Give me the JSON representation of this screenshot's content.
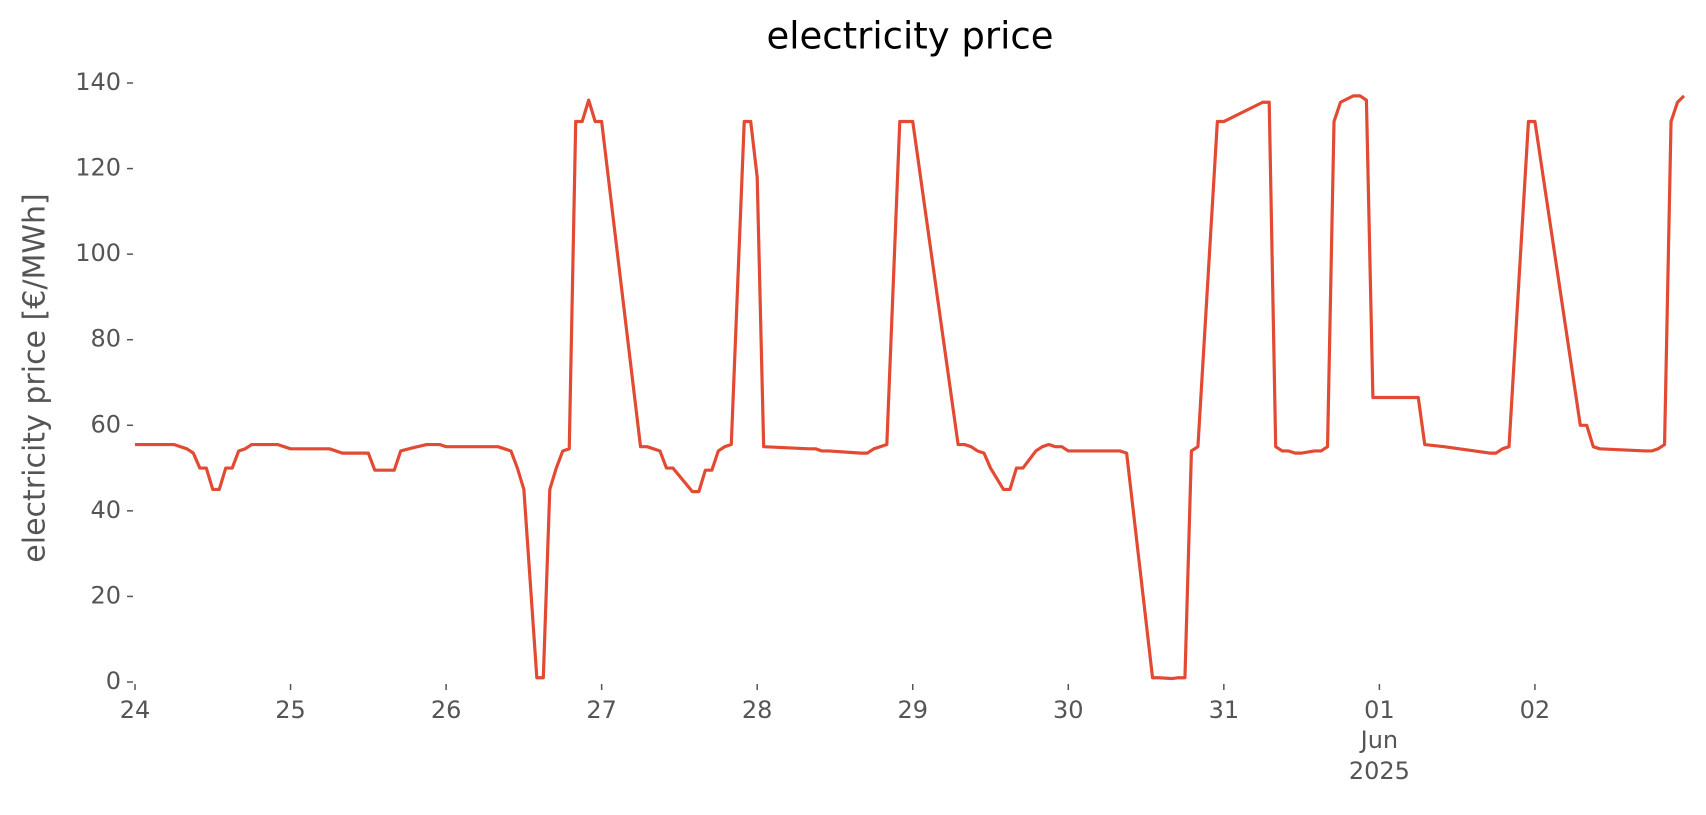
{
  "chart_data": {
    "type": "line",
    "title": "electricity price",
    "y_label": "electricity price [€/MWh]",
    "series": [
      {
        "name": "electricity price",
        "color": "#e24a33",
        "x": [
          "2025-05-24T00:00",
          "2025-05-24T06:00",
          "2025-05-24T08:00",
          "2025-05-24T09:00",
          "2025-05-24T10:00",
          "2025-05-24T11:00",
          "2025-05-24T12:00",
          "2025-05-24T13:00",
          "2025-05-24T14:00",
          "2025-05-24T15:00",
          "2025-05-24T16:00",
          "2025-05-24T17:00",
          "2025-05-24T18:00",
          "2025-05-24T22:00",
          "2025-05-25T00:00",
          "2025-05-25T06:00",
          "2025-05-25T08:00",
          "2025-05-25T12:00",
          "2025-05-25T13:00",
          "2025-05-25T16:00",
          "2025-05-25T17:00",
          "2025-05-25T19:00",
          "2025-05-25T21:00",
          "2025-05-25T23:00",
          "2025-05-26T00:00",
          "2025-05-26T08:00",
          "2025-05-26T09:00",
          "2025-05-26T10:00",
          "2025-05-26T11:00",
          "2025-05-26T12:00",
          "2025-05-26T14:00",
          "2025-05-26T15:00",
          "2025-05-26T16:00",
          "2025-05-26T17:00",
          "2025-05-26T18:00",
          "2025-05-26T19:00",
          "2025-05-26T20:00",
          "2025-05-26T21:00",
          "2025-05-26T22:00",
          "2025-05-26T23:00",
          "2025-05-27T00:00",
          "2025-05-27T06:00",
          "2025-05-27T07:00",
          "2025-05-27T08:00",
          "2025-05-27T09:00",
          "2025-05-27T10:00",
          "2025-05-27T11:00",
          "2025-05-27T14:00",
          "2025-05-27T15:00",
          "2025-05-27T16:00",
          "2025-05-27T17:00",
          "2025-05-27T18:00",
          "2025-05-27T19:00",
          "2025-05-27T20:00",
          "2025-05-27T22:00",
          "2025-05-27T23:00",
          "2025-05-28T00:00",
          "2025-05-28T01:00",
          "2025-05-28T08:00",
          "2025-05-28T09:00",
          "2025-05-28T10:00",
          "2025-05-28T11:00",
          "2025-05-28T16:00",
          "2025-05-28T17:00",
          "2025-05-28T18:00",
          "2025-05-28T19:00",
          "2025-05-28T20:00",
          "2025-05-28T22:00",
          "2025-05-29T00:00",
          "2025-05-29T07:00",
          "2025-05-29T08:00",
          "2025-05-29T09:00",
          "2025-05-29T10:00",
          "2025-05-29T11:00",
          "2025-05-29T12:00",
          "2025-05-29T14:00",
          "2025-05-29T15:00",
          "2025-05-29T16:00",
          "2025-05-29T17:00",
          "2025-05-29T19:00",
          "2025-05-29T20:00",
          "2025-05-29T21:00",
          "2025-05-29T22:00",
          "2025-05-29T23:00",
          "2025-05-30T00:00",
          "2025-05-30T07:00",
          "2025-05-30T08:00",
          "2025-05-30T09:00",
          "2025-05-30T13:00",
          "2025-05-30T14:00",
          "2025-05-30T16:00",
          "2025-05-30T17:00",
          "2025-05-30T18:00",
          "2025-05-30T19:00",
          "2025-05-30T20:00",
          "2025-05-30T23:00",
          "2025-05-31T00:00",
          "2025-05-31T06:00",
          "2025-05-31T07:00",
          "2025-05-31T08:00",
          "2025-05-31T09:00",
          "2025-05-31T10:00",
          "2025-05-31T11:00",
          "2025-05-31T12:00",
          "2025-05-31T14:00",
          "2025-05-31T15:00",
          "2025-05-31T16:00",
          "2025-05-31T17:00",
          "2025-05-31T18:00",
          "2025-05-31T20:00",
          "2025-05-31T21:00",
          "2025-05-31T22:00",
          "2025-05-31T23:00",
          "2025-06-01T00:00",
          "2025-06-01T05:00",
          "2025-06-01T06:00",
          "2025-06-01T07:00",
          "2025-06-01T10:00",
          "2025-06-01T17:00",
          "2025-06-01T18:00",
          "2025-06-01T19:00",
          "2025-06-01T20:00",
          "2025-06-01T23:00",
          "2025-06-02T00:00",
          "2025-06-02T07:00",
          "2025-06-02T08:00",
          "2025-06-02T09:00",
          "2025-06-02T10:00",
          "2025-06-02T17:00",
          "2025-06-02T18:00",
          "2025-06-02T19:00",
          "2025-06-02T20:00",
          "2025-06-02T21:00",
          "2025-06-02T22:00",
          "2025-06-02T23:00"
        ],
        "values": [
          55.5,
          55.5,
          54.5,
          53.5,
          50,
          50,
          45,
          45,
          50,
          50,
          54,
          54.5,
          55.5,
          55.5,
          54.5,
          54.5,
          53.5,
          53.5,
          49.5,
          49.5,
          54,
          54.8,
          55.5,
          55.5,
          55,
          55,
          54.5,
          54,
          50,
          45,
          1,
          1,
          45,
          50,
          54,
          54.5,
          131,
          131,
          136,
          131,
          131,
          55,
          55,
          54.5,
          54,
          50,
          50,
          44.5,
          44.5,
          49.5,
          49.5,
          54,
          55,
          55.5,
          131,
          131,
          118,
          55,
          54.5,
          54.5,
          54,
          54,
          53.5,
          53.5,
          54.5,
          55,
          55.5,
          131,
          131,
          55.5,
          55.5,
          55,
          54,
          53.5,
          50,
          45,
          45,
          50,
          50,
          54,
          55,
          55.5,
          55,
          55,
          54,
          54,
          54,
          53.5,
          1,
          1,
          0.8,
          1,
          1,
          54,
          55,
          131,
          131,
          135.5,
          135.5,
          55,
          54,
          54,
          53.5,
          53.5,
          54,
          54,
          55,
          131,
          135.5,
          137,
          137,
          136,
          66.5,
          66.5,
          66.5,
          66.5,
          55.5,
          55,
          53.5,
          53.5,
          54.5,
          55,
          131,
          131,
          60,
          60,
          55,
          54.5,
          54,
          54,
          54.5,
          55.5,
          131,
          135.5,
          137
        ]
      }
    ],
    "xlim": [
      "2025-05-24T00:00",
      "2025-06-02T23:00"
    ],
    "xticks": [
      {
        "value": "2025-05-24T00:00",
        "label": "24"
      },
      {
        "value": "2025-05-25T00:00",
        "label": "25"
      },
      {
        "value": "2025-05-26T00:00",
        "label": "26"
      },
      {
        "value": "2025-05-27T00:00",
        "label": "27"
      },
      {
        "value": "2025-05-28T00:00",
        "label": "28"
      },
      {
        "value": "2025-05-29T00:00",
        "label": "29"
      },
      {
        "value": "2025-05-30T00:00",
        "label": "30"
      },
      {
        "value": "2025-05-31T00:00",
        "label": "31"
      },
      {
        "value": "2025-06-01T00:00",
        "label": "01"
      },
      {
        "value": "2025-06-02T00:00",
        "label": "02"
      }
    ],
    "x_offset_labels": [
      "Jun",
      "2025"
    ],
    "ylim": [
      0,
      140
    ],
    "yticks": [
      0,
      20,
      40,
      60,
      80,
      100,
      120,
      140
    ],
    "grid": false
  }
}
